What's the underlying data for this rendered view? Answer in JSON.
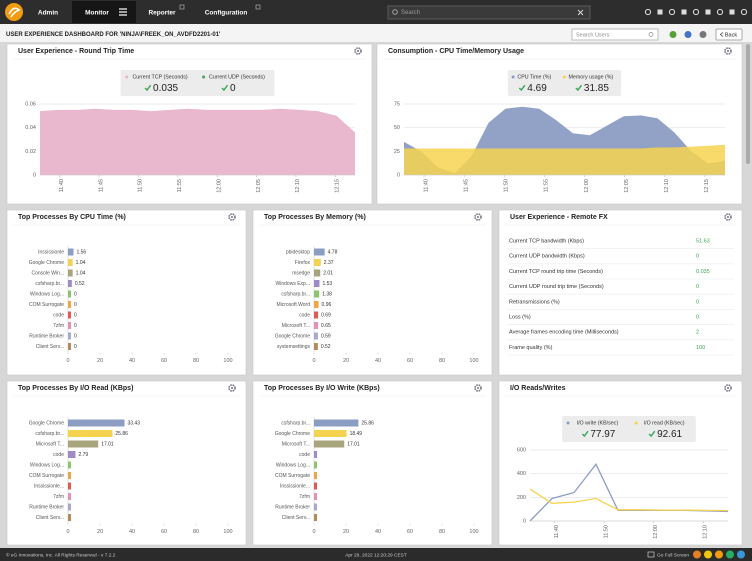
{
  "nav": {
    "tabs": [
      "Admin",
      "Monitor",
      "Reporter",
      "Configuration"
    ],
    "search_placeholder": "Search"
  },
  "header": {
    "title": "USER EXPERIENCE DASHBOARD FOR 'NINJA\\FREEK_ON_AVDFD2201-01'",
    "search_placeholder": "Search Users",
    "back": "Back"
  },
  "palette": [
    "#8c9dc3",
    "#f6d34f",
    "#a8a47c",
    "#9e8bc7",
    "#8cc56e",
    "#efa646",
    "#df5a52",
    "#e68fb7",
    "#a9a9d0",
    "#b5895a"
  ],
  "panels": [
    {
      "title": "User Experience - Round Trip Time",
      "chart": {
        "type": "area",
        "grid": true,
        "ylim": [
          0,
          0.06
        ],
        "yticks": [
          0,
          0.02,
          0.04,
          0.06
        ],
        "xlabels": [
          "11:40",
          "11:45",
          "11:50",
          "11:55",
          "12:00",
          "12:05",
          "12:10",
          "12:15"
        ],
        "series": [
          {
            "name": "Current TCP (Seconds)",
            "color": "#e8b4cc",
            "current": 0.035,
            "values": [
              0.054,
              0.055,
              0.055,
              0.056,
              0.055,
              0.055,
              0.054,
              0.055,
              0.056,
              0.055,
              0.055,
              0.055,
              0.055,
              0.056,
              0.055,
              0.054,
              0.05,
              0.036
            ]
          },
          {
            "name": "Current UDP (Seconds)",
            "color": "#3aa655",
            "current": 0,
            "values": [
              0,
              0,
              0,
              0,
              0,
              0,
              0,
              0,
              0,
              0,
              0,
              0,
              0,
              0,
              0,
              0,
              0,
              0
            ]
          }
        ]
      }
    },
    {
      "title": "Consumption - CPU Time/Memory Usage",
      "chart": {
        "type": "area",
        "grid": true,
        "ylim": [
          0,
          75
        ],
        "yticks": [
          0,
          25,
          50,
          75
        ],
        "xlabels": [
          "11:40",
          "11:45",
          "11:50",
          "11:55",
          "12:00",
          "12:05",
          "12:10",
          "12:15"
        ],
        "series": [
          {
            "name": "CPU Time (%)",
            "color": "#8c9dc3",
            "current": 4.69,
            "values": [
              35,
              25,
              8,
              2,
              20,
              55,
              70,
              72,
              70,
              58,
              44,
              42,
              52,
              62,
              63,
              60,
              45,
              25,
              12,
              15
            ]
          },
          {
            "name": "Memory usage (%)",
            "color": "#f6d34f",
            "current": 31.85,
            "values": [
              28,
              28,
              28,
              28,
              28,
              28,
              28,
              28,
              28,
              28,
              28,
              28,
              28,
              28,
              28,
              29,
              29,
              30,
              31,
              32
            ]
          }
        ]
      }
    },
    {
      "title": "Top Processes By CPU Time (%)",
      "chart": {
        "type": "hbar",
        "zero_labels": true,
        "xlim": [
          0,
          100
        ],
        "xticks": [
          0,
          20,
          40,
          60,
          80,
          100
        ],
        "categories": [
          "Inssissionle",
          "Google Chrome",
          "Console Win...",
          "csfsharp.br...",
          "Windows Log...",
          "COM Surrogate",
          "code",
          "7zfm",
          "Runtime Broker",
          "Client Serv..."
        ],
        "values": [
          1.56,
          1.04,
          1.04,
          0.52,
          0,
          0,
          0,
          0,
          0,
          0
        ]
      }
    },
    {
      "title": "Top Processes By Memory (%)",
      "chart": {
        "type": "hbar",
        "zero_labels": true,
        "xlim": [
          0,
          100
        ],
        "xticks": [
          0,
          20,
          40,
          60,
          80,
          100
        ],
        "categories": [
          "pbidesktop",
          "Firefox",
          "msedge",
          "Windows Exp...",
          "csfsharp.br...",
          "Microsoft Word",
          "code",
          "Microsoft T...",
          "Google Chrome",
          "systemsettings"
        ],
        "values": [
          4.78,
          2.37,
          2.01,
          1.53,
          1.38,
          0.96,
          0.69,
          0.65,
          0.59,
          0.52
        ]
      }
    },
    {
      "title": "User Experience - Remote FX",
      "table": {
        "rows": [
          [
            "Current TCP bandwidth (Kbps)",
            51.63
          ],
          [
            "Current UDP bandwidth (Kbps)",
            0
          ],
          [
            "Current TCP round trip time (Seconds)",
            0.035
          ],
          [
            "Current UDP round trip time (Seconds)",
            0
          ],
          [
            "Retransmissions (%)",
            0
          ],
          [
            "Loss (%)",
            0
          ],
          [
            "Average frames encoding time (Milliseconds)",
            2
          ],
          [
            "Frame quality (%)",
            100
          ]
        ]
      }
    },
    {
      "title": "Top Processes By I/O Read (KBps)",
      "chart": {
        "type": "hbar",
        "zero_labels": false,
        "xlim": [
          0,
          100
        ],
        "xticks": [
          0,
          20,
          40,
          60,
          80,
          100
        ],
        "categories": [
          "Google Chrome",
          "csfsharp.br...",
          "Microsoft T...",
          "code",
          "Windows Log...",
          "COM Surrogate",
          "Inssissionle...",
          "7zfm",
          "Runtime Broker",
          "Client Serv..."
        ],
        "values": [
          33.43,
          25.86,
          17.01,
          2.79,
          0,
          0,
          0,
          0,
          0,
          0
        ]
      }
    },
    {
      "title": "Top Processes By I/O Write (KBps)",
      "chart": {
        "type": "hbar",
        "zero_labels": false,
        "xlim": [
          0,
          100
        ],
        "xticks": [
          0,
          20,
          40,
          60,
          80,
          100
        ],
        "categories": [
          "csfsharp.br...",
          "Google Chrome",
          "Microsoft T...",
          "code",
          "Windows Log...",
          "COM Surrogate",
          "Inssissionle...",
          "7zfm",
          "Runtime Broker",
          "Client Serv..."
        ],
        "values": [
          25.86,
          18.49,
          17.01,
          0,
          0,
          0,
          0,
          0,
          0,
          0
        ]
      }
    },
    {
      "title": "I/O Reads/Writes",
      "chart": {
        "type": "line",
        "grid": true,
        "ylim": [
          0,
          600
        ],
        "yticks": [
          0,
          200,
          400,
          600
        ],
        "xlabels": [
          "11:40",
          "11:50",
          "12:00",
          "12:10"
        ],
        "series": [
          {
            "name": "I/O write (KB/sec)",
            "color": "#8c9dc3",
            "current": 77.97,
            "values": [
              0,
              190,
              240,
              480,
              90,
              90,
              90,
              90,
              85,
              80
            ]
          },
          {
            "name": "I/O read (KB/sec)",
            "color": "#f6d34f",
            "current": 92.61,
            "values": [
              270,
              150,
              160,
              190,
              95,
              95,
              92,
              92,
              90,
              88
            ]
          }
        ]
      }
    }
  ],
  "footer": {
    "copyright": "© eG Innovations, Inc. All Rights Reserved - v 7.2.2",
    "timestamp": "Apr 29, 2022 12:20:29 CEST",
    "fullscreen": "Go Full Screen"
  }
}
